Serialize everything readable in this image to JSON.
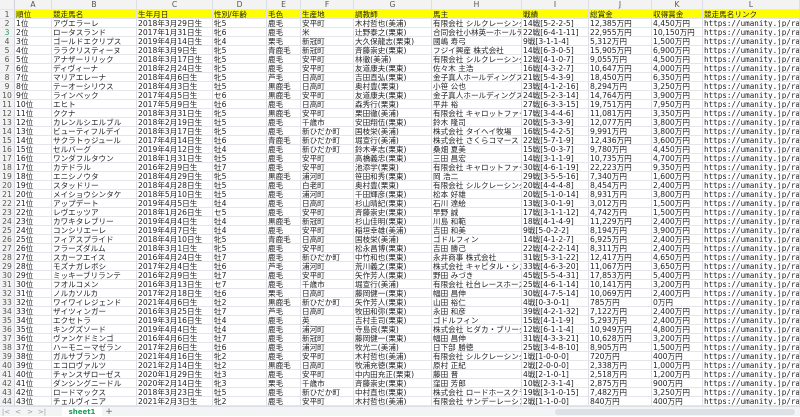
{
  "columns": [
    "A",
    "B",
    "C",
    "D",
    "E",
    "F",
    "G",
    "H",
    "I",
    "J",
    "K",
    "L"
  ],
  "headers": [
    "順位",
    "競走馬名",
    "生年月日",
    "性別/年齢",
    "毛色",
    "生産地",
    "調教師",
    "馬主",
    "戦績",
    "総賞金",
    "収得賞金",
    "競走馬名リンク"
  ],
  "rows": [
    [
      "1位",
      "アヴエラーレ",
      "2018年3月29日生",
      "牝5",
      "鹿毛",
      "安平町",
      "木村哲也(美浦)",
      "有限会社 シルクレーシング",
      "14戦[5-2-2-5]",
      "12,385万円",
      "4,450万円",
      "https://umanity.jp/raced"
    ],
    [
      "2位",
      "ロータスランド",
      "2017年1月31日生",
      "牝6",
      "鹿毛",
      "米",
      "辻野泰之(栗東)",
      "合同会社小林英一ホールディングス",
      "22戦[6-4-1-11]",
      "22,955万円",
      "10,150万円",
      "https://umanity.jp/raced"
    ],
    [
      "3位",
      "ゴールドエクリプス",
      "2019年4月14日生",
      "牝4",
      "栗毛",
      "新冠町",
      "大久保龍志(栗東)",
      "國嶋 寿弓",
      "9戦[3-1-1-4]",
      "5,312万円",
      "1,500万円",
      "https://umanity.jp/raced"
    ],
    [
      "4位",
      "ララクリスティーヌ",
      "2018年3月9日生",
      "牝5",
      "青鹿毛",
      "新冠町",
      "斉藤崇史(栗東)",
      "フジイ興産 株式会社",
      "14戦[6-3-0-5]",
      "15,905万円",
      "6,900万円",
      "https://umanity.jp/raced"
    ],
    [
      "5位",
      "アナザーリリック",
      "2018年3月17日生",
      "牝5",
      "鹿毛",
      "安平町",
      "林徹(美浦)",
      "有限会社 シルクレーシング",
      "12戦[4-1-0-7]",
      "9,055万円",
      "4,500万円",
      "https://umanity.jp/raced"
    ],
    [
      "6位",
      "ディヴィーナ",
      "2018年2月24日生",
      "牝5",
      "鹿毛",
      "安平町",
      "友道康夫(栗東)",
      "佐々木 主浩",
      "16戦[4-3-2-7]",
      "10,647万円",
      "4,000万円",
      "https://umanity.jp/raced"
    ],
    [
      "7位",
      "マリアエレーナ",
      "2018年4月6日生",
      "牝5",
      "芦毛",
      "日高町",
      "吉田直弘(栗東)",
      "金子真人ホールディングス",
      "21戦[5-4-3-9]",
      "18,450万円",
      "6,350万円",
      "https://umanity.jp/raced"
    ],
    [
      "8位",
      "テーオーシリウス",
      "2018年4月3日生",
      "牡5",
      "黒鹿毛",
      "日高町",
      "奥村豊(栗東)",
      "小笹 公也",
      "23戦[4-1-2-16]",
      "8,294万円",
      "3,250万円",
      "https://umanity.jp/raced"
    ],
    [
      "9位",
      "ラインベック",
      "2017年4月5日生",
      "セ6",
      "黒鹿毛",
      "安平町",
      "友道康夫(栗東)",
      "金子真人ホールディングス",
      "24戦[5-2-3-14]",
      "14,764万円",
      "3,900万円",
      "https://umanity.jp/raced"
    ],
    [
      "10位",
      "エヒト",
      "2017年5月9日生",
      "牡6",
      "鹿毛",
      "日高町",
      "森秀行(栗東)",
      "平井 裕",
      "27戦[6-3-3-15]",
      "19,751万円",
      "7,950万円",
      "https://umanity.jp/raced"
    ],
    [
      "11位",
      "ククナ",
      "2018年3月31日生",
      "牝5",
      "黒鹿毛",
      "安平町",
      "栗田徹(美浦)",
      "有限会社 キャロットファーム",
      "17戦[3-4-4-6]",
      "11,081万円",
      "3,350万円",
      "https://umanity.jp/raced"
    ],
    [
      "12位",
      "カレンルシエルブル",
      "2018年2月19日生",
      "牡5",
      "鹿毛",
      "千歳市",
      "安田翔伍(栗東)",
      "鈴木 隆司",
      "20戦[5-3-3-9]",
      "12,077万円",
      "3,800万円",
      "https://umanity.jp/raced"
    ],
    [
      "13位",
      "ビューティフルデイ",
      "2018年3月17日生",
      "牝5",
      "鹿毛",
      "新ひだか町",
      "国枝栄(美浦)",
      "株式会社 タイヘイ牧場",
      "16戦[5-4-2-5]",
      "9,991万円",
      "3,800万円",
      "https://umanity.jp/raced"
    ],
    [
      "14位",
      "サクラトゥジュール",
      "2017年4月14日生",
      "牡6",
      "青鹿毛",
      "新ひだか町",
      "堀宣行(美浦)",
      "株式会社 さくらコマース",
      "22戦[5-7-1-9]",
      "12,436万円",
      "3,600万円",
      "https://umanity.jp/raced"
    ],
    [
      "15位",
      "セルバーグ",
      "2019年4月12日生",
      "牡4",
      "鹿毛",
      "新ひだか町",
      "鈴木孝志(栗東)",
      "桑畑 夏美",
      "15戦[5-0-3-7]",
      "9,780万円",
      "4,450万円",
      "https://umanity.jp/raced"
    ],
    [
      "16位",
      "ワンダフルタウン",
      "2018年1月31日生",
      "牡5",
      "鹿毛",
      "安平町",
      "高橋義忠(栗東)",
      "三田 昌宏",
      "14戦[3-1-1-9]",
      "10,735万円",
      "4,700万円",
      "https://umanity.jp/raced"
    ],
    [
      "17位",
      "カテドラル",
      "2016年2月9日生",
      "牡7",
      "鹿毛",
      "安平町",
      "池添学(栗東)",
      "有限会社 キャロットファーム",
      "30戦[4-6-1-19]",
      "22,223万円",
      "9,350万円",
      "https://umanity.jp/raced"
    ],
    [
      "18位",
      "エニシノウタ",
      "2018年4月29日生",
      "牝5",
      "黒鹿毛",
      "浦河町",
      "笹田和秀(栗東)",
      "岡 浩二",
      "29戦[3-5-5-16]",
      "7,340万円",
      "1,600万円",
      "https://umanity.jp/raced"
    ],
    [
      "19位",
      "スタッドリー",
      "2018年4月28日生",
      "牡5",
      "鹿毛",
      "白老町",
      "奥村豊(栗東)",
      "有限会社 シルクレーシング",
      "20戦[4-4-4-8]",
      "8,454万円",
      "2,400万円",
      "https://umanity.jp/raced"
    ],
    [
      "20位",
      "メイショウシンタケ",
      "2018年5月10日生",
      "牡5",
      "鹿毛",
      "浦河町",
      "千田輝彦(栗東)",
      "松本 好雄",
      "20戦[5-1-0-14]",
      "8,931万円",
      "3,800万円",
      "https://umanity.jp/raced"
    ],
    [
      "21位",
      "アップデート",
      "2019年4月5日生",
      "牡4",
      "鹿毛",
      "日高町",
      "杉山晴紀(栗東)",
      "石川 達絵",
      "13戦[3-0-1-9]",
      "3,012万円",
      "1,500万円",
      "https://umanity.jp/raced"
    ],
    [
      "22位",
      "レヴエッツア",
      "2018年1月26日生",
      "セ5",
      "鹿毛",
      "安平町",
      "斉藤崇史(栗東)",
      "早野 誠",
      "17戦[3-1-1-12]",
      "4,742万円",
      "1,500万円",
      "https://umanity.jp/raced"
    ],
    [
      "23位",
      "カワキタレブリー",
      "2019年4月4日生",
      "牡4",
      "黒鹿毛",
      "新冠町",
      "杉山佳明(栗東)",
      "川島 和範",
      "18戦[4-1-4-9]",
      "11,229万円",
      "2,400万円",
      "https://umanity.jp/raced"
    ],
    [
      "24位",
      "コンシリエーレ",
      "2019年4月7日生",
      "牡4",
      "鹿毛",
      "安平町",
      "稲垣幸雄(美浦)",
      "吉田 和美",
      "9戦[5-0-2-2]",
      "8,194万円",
      "3,900万円",
      "https://umanity.jp/raced"
    ],
    [
      "25位",
      "フィアスプライド",
      "2018年4月10日生",
      "牝5",
      "青鹿毛",
      "日高町",
      "国枝栄(美浦)",
      "ゴドルフィン",
      "14戦[4-1-2-7]",
      "6,925万円",
      "2,400万円",
      "https://umanity.jp/raced"
    ],
    [
      "26位",
      "フラーズダルム",
      "2018年3月1日生",
      "牝5",
      "鹿毛",
      "安平町",
      "松永昌博(栗東)",
      "吉田 勝己",
      "22戦[4-2-2-14]",
      "8,311万円",
      "2,400万円",
      "https://umanity.jp/raced"
    ],
    [
      "27位",
      "スカーフエイス",
      "2016年4月24日生",
      "牡7",
      "鹿毛",
      "新ひだか町",
      "中竹和也(栗東)",
      "永井商事 株式会社",
      "31戦[5-3-1-22]",
      "12,417万円",
      "4,650万円",
      "https://umanity.jp/raced"
    ],
    [
      "28位",
      "モズナガレボシ",
      "2017年2月4日生",
      "牡6",
      "芦毛",
      "浦河町",
      "荒川義之(栗東)",
      "株式会社 キャピタル・システム",
      "33戦[4-6-3-20]",
      "11,067万円",
      "3,650万円",
      "https://umanity.jp/raced"
    ],
    [
      "29位",
      "ミッキーブリランテ",
      "2016年2月9日生",
      "牡7",
      "鹿毛",
      "安平町",
      "矢作芳人(栗東)",
      "野田 みづき",
      "45戦[5-5-4-31]",
      "17,853万円",
      "5,400万円",
      "https://umanity.jp/raced"
    ],
    [
      "30位",
      "フオルコメン",
      "2016年3月13日生",
      "セ7",
      "鹿毛",
      "千歳市",
      "堀宣行(美浦)",
      "有限会社 社台レースホース",
      "25戦[4-6-1-14]",
      "10,141万円",
      "3,200万円",
      "https://umanity.jp/raced"
    ],
    [
      "31位",
      "ノルカソルカ",
      "2017年2月18日生",
      "牡6",
      "栗毛",
      "日高町",
      "藤岡健一(栗東)",
      "幅田 昌伸",
      "30戦[4-7-5-14]",
      "10,069万円",
      "2,400万円",
      "https://umanity.jp/raced"
    ],
    [
      "32位",
      "ワイワイレジェンド",
      "2021年4月6日生",
      "牡2",
      "黒鹿毛",
      "新ひだか町",
      "矢作芳人(栗東)",
      "山田 裕仁",
      "4戦[0-3-0-1]",
      "785万円",
      "0万円",
      "https://umanity.jp/raced"
    ],
    [
      "33位",
      "ザイツィンガー",
      "2016年3月25日生",
      "牡7",
      "芦毛",
      "日高町",
      "牧田和弥(栗東)",
      "永田 和彦",
      "39戦[4-2-1-32]",
      "7,122万円",
      "2,400万円",
      "https://umanity.jp/raced"
    ],
    [
      "34位",
      "エクセトラ",
      "2019年3月16日生",
      "牡4",
      "鹿毛",
      "英",
      "吉村圭司(栗東)",
      "ゴドルフィン",
      "15戦[4-1-1-9]",
      "5,293万円",
      "2,400万円",
      "https://umanity.jp/raced"
    ],
    [
      "35位",
      "キングズソード",
      "2019年4月4日生",
      "牡4",
      "鹿毛",
      "浦河町",
      "寺島良(栗東)",
      "株式会社 ヒダカ・ブリーダーズ・ユニオン",
      "12戦[6-1-1-4]",
      "10,949万円",
      "4,800万円",
      "https://umanity.jp/raced"
    ],
    [
      "36位",
      "ヴァンケドミンゴ",
      "2016年4月6日生",
      "牡7",
      "鹿毛",
      "新冠町",
      "藤岡健一(栗東)",
      "幅田 昌伸",
      "31戦[4-3-3-21]",
      "10,628万円",
      "3,200万円",
      "https://umanity.jp/raced"
    ],
    [
      "37位",
      "ハーモニーマゼラン",
      "2017年2月6日生",
      "牡6",
      "鹿毛",
      "浦河町",
      "牧光二(美浦)",
      "日下部 勝徳",
      "25戦[3-4-8-10]",
      "8,905万円",
      "1,500万円",
      "https://umanity.jp/raced"
    ],
    [
      "38位",
      "ガルサブランカ",
      "2021年4月16日生",
      "牝2",
      "鹿毛",
      "安平町",
      "木村哲也(美浦)",
      "有限会社 シルクレーシング",
      "1戦[1-0-0-0]",
      "720万円",
      "400万円",
      "https://umanity.jp/raced"
    ],
    [
      "39位",
      "エコロヴァルツ",
      "2021年2月14日生",
      "牡2",
      "黒鹿毛",
      "日高町",
      "牧浦充徳(栗東)",
      "原村 正紀",
      "2戦[2-0-0-0]",
      "2,338万円",
      "1,000万円",
      "https://umanity.jp/raced"
    ],
    [
      "40位",
      "チャンスザローゼス",
      "2020年1月29日生",
      "牡3",
      "鹿毛",
      "安平町",
      "中内田充正(栗東)",
      "藤田 晋",
      "4戦[2-1-0-1]",
      "2,518万円",
      "1,200万円",
      "https://umanity.jp/raced"
    ],
    [
      "41位",
      "ダンシングニードル",
      "2020年2月14日生",
      "牝3",
      "栗毛",
      "千歳市",
      "斉藤崇史(栗東)",
      "窪田 芳郎",
      "10戦[2-3-1-4]",
      "2,875万円",
      "900万円",
      "https://umanity.jp/raced"
    ],
    [
      "42位",
      "ロードマックス",
      "2018年3月23日生",
      "牡5",
      "鹿毛",
      "新ひだか町",
      "中村直也(栗東)",
      "株式会社 ロードホースクラブ",
      "19戦[3-1-0-15]",
      "7,482万円",
      "3,250万円",
      "https://umanity.jp/raced"
    ],
    [
      "43位",
      "チェルヴィニア",
      "2021年2月3日生",
      "牝2",
      "鹿毛",
      "安平町",
      "木村哲也(美浦)",
      "有限会社 サンデーレーシング",
      "2戦[1-1-0-0]",
      "840万円",
      "400万円",
      "https://umanity.jp/raced"
    ]
  ],
  "selected_row": 3,
  "tabs": {
    "first": "|<",
    "prev": "<",
    "next": ">",
    "last": ">|",
    "sheet": "sheet1",
    "add": "+"
  },
  "colors": {
    "header_fill": "#ffff00",
    "active_tab": "#1a9e5c"
  }
}
